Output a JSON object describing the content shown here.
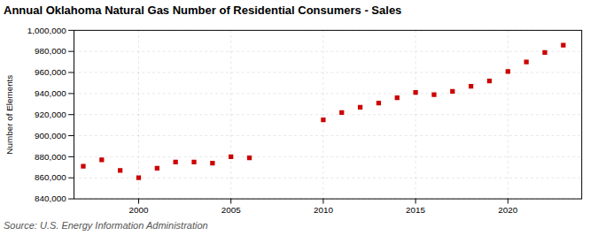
{
  "chart_data": {
    "type": "scatter",
    "title": "Annual Oklahoma Natural Gas Number of Residential Consumers - Sales",
    "ylabel": "Number of Elements",
    "source": "Source: U.S. Energy Information Administration",
    "x": [
      1997,
      1998,
      1999,
      2000,
      2001,
      2002,
      2003,
      2004,
      2005,
      2006,
      2010,
      2011,
      2012,
      2013,
      2014,
      2015,
      2016,
      2017,
      2018,
      2019,
      2020,
      2021,
      2022,
      2023
    ],
    "values": [
      871000,
      877000,
      867000,
      860000,
      869000,
      875000,
      875000,
      874000,
      880000,
      879000,
      915000,
      922000,
      927000,
      931000,
      936000,
      941000,
      939000,
      942000,
      947000,
      952000,
      961000,
      970000,
      979000,
      986000
    ],
    "color": "#cc0000",
    "marker": "square",
    "xlim": [
      1996.5,
      2024
    ],
    "xticks": [
      2000,
      2005,
      2010,
      2015,
      2020
    ],
    "ylim": [
      840000,
      1000000
    ],
    "yticks": [
      {
        "value": 840000,
        "label": "840,000"
      },
      {
        "value": 860000,
        "label": "860,000"
      },
      {
        "value": 880000,
        "label": "880,000"
      },
      {
        "value": 900000,
        "label": "900,000"
      },
      {
        "value": 920000,
        "label": "920,000"
      },
      {
        "value": 940000,
        "label": "940,000"
      },
      {
        "value": 960000,
        "label": "960,000"
      },
      {
        "value": 980000,
        "label": "980,000"
      },
      {
        "value": 1000000,
        "label": "1,000,000"
      }
    ],
    "grid": true
  }
}
